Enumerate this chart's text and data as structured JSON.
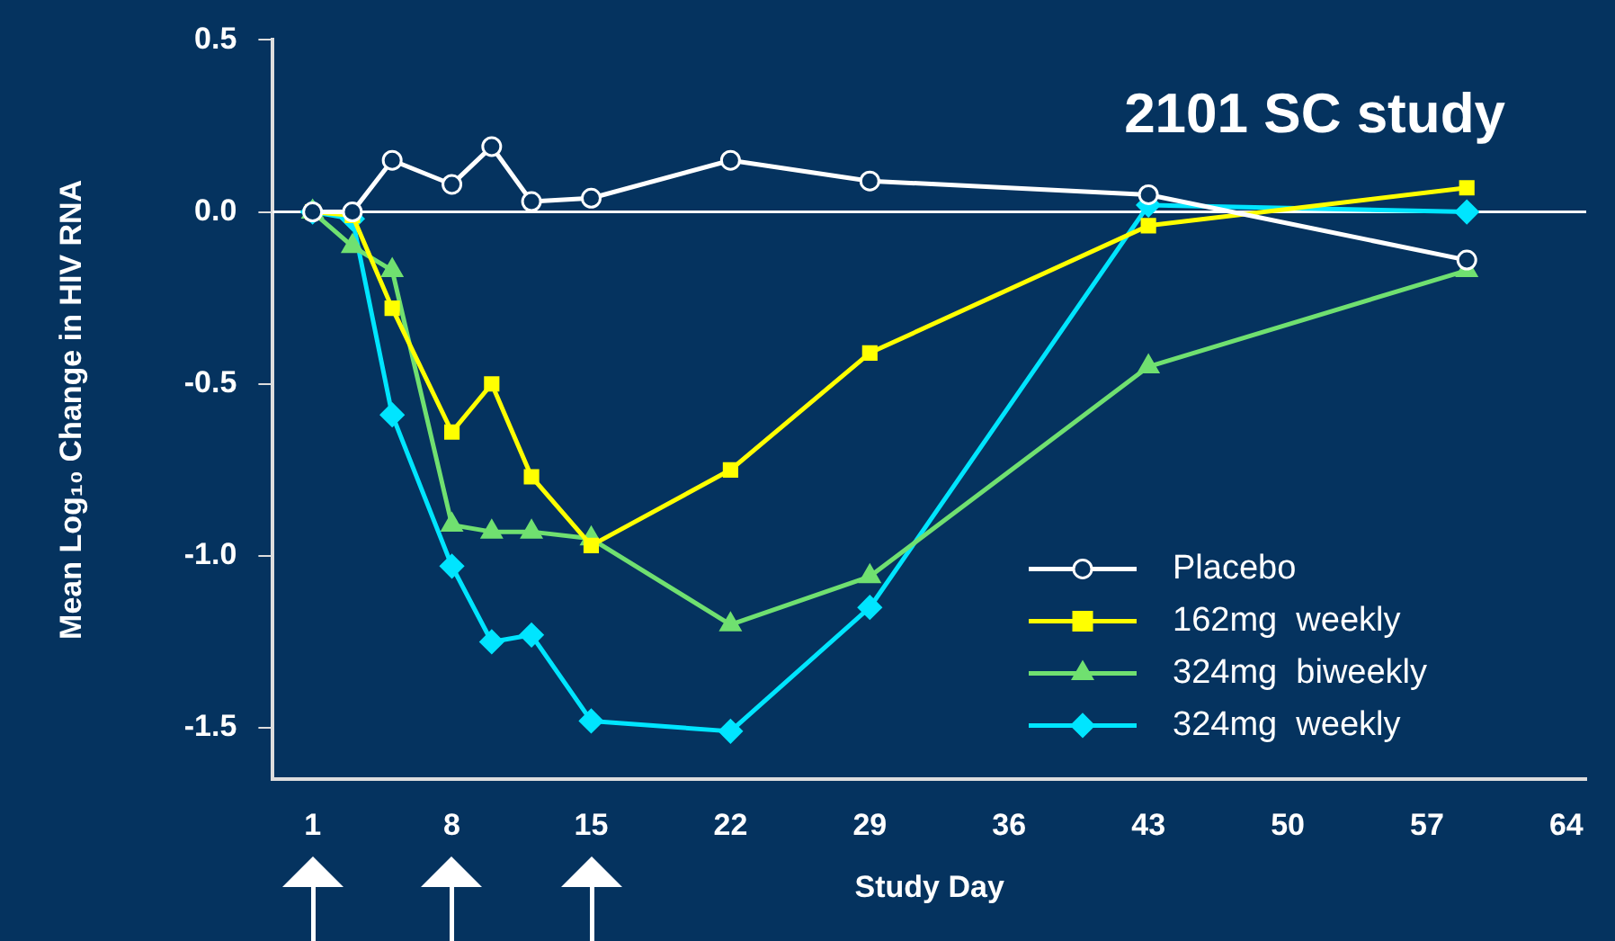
{
  "chart_data": {
    "type": "line",
    "title": "2101 SC study",
    "xlabel": "Study Day",
    "ylabel": "Mean Log₁₀ Change in HIV RNA",
    "x": [
      1,
      3,
      5,
      8,
      10,
      12,
      15,
      22,
      29,
      43,
      59
    ],
    "series": [
      {
        "name": "Placebo",
        "color": "#ffffff",
        "marker": "circle",
        "values": [
          0.0,
          0.0,
          0.15,
          0.08,
          0.19,
          0.03,
          0.04,
          0.15,
          0.09,
          0.05,
          -0.14
        ]
      },
      {
        "name": "162mg  weekly",
        "color": "#ffff00",
        "marker": "square",
        "values": [
          0.0,
          -0.01,
          -0.28,
          -0.64,
          -0.5,
          -0.77,
          -0.97,
          -0.75,
          -0.41,
          -0.04,
          0.07
        ]
      },
      {
        "name": "324mg  biweekly",
        "color": "#70e070",
        "marker": "triangle",
        "values": [
          0.0,
          -0.1,
          -0.17,
          -0.91,
          -0.93,
          -0.93,
          -0.95,
          -1.2,
          -1.06,
          -0.45,
          -0.17
        ]
      },
      {
        "name": "324mg  weekly",
        "color": "#00e5ff",
        "marker": "diamond",
        "values": [
          0.0,
          -0.02,
          -0.59,
          -1.03,
          -1.25,
          -1.23,
          -1.48,
          -1.51,
          -1.15,
          0.02,
          0.0
        ]
      }
    ],
    "xlim": [
      -1,
      65
    ],
    "xticks": [
      1,
      8,
      15,
      22,
      29,
      36,
      43,
      50,
      57,
      64
    ],
    "ylim": [
      -1.65,
      0.5
    ],
    "yticks": [
      {
        "value": 0.5,
        "label": "0.5"
      },
      {
        "value": 0,
        "label": "0.0"
      },
      {
        "value": -0.5,
        "label": "-0.5"
      },
      {
        "value": -1,
        "label": "-1.0"
      },
      {
        "value": -1.5,
        "label": "-1.5"
      }
    ],
    "ref_lines": [
      {
        "axis": "y",
        "value": 0,
        "color": "#ffffff"
      }
    ],
    "grid": false,
    "legend": "bottom right",
    "line_style": "solid"
  }
}
